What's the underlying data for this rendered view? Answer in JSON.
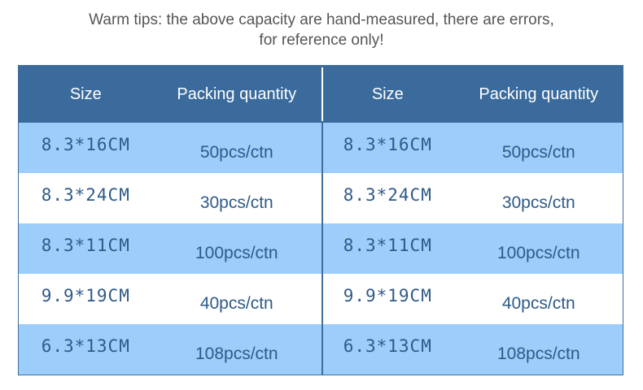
{
  "tips": {
    "line1": "Warm tips: the above capacity are hand-measured, there are errors,",
    "line2": "for reference only!"
  },
  "header": [
    "Size",
    "Packing quantity",
    "Size",
    "Packing quantity"
  ],
  "colors": {
    "header": "#3a6b9c",
    "row_light": "#9dcdfb",
    "row_white": "#ffffff",
    "text": "#2f5a88"
  },
  "rows": [
    {
      "size": "8.3*16CM",
      "qty": "50pcs/ctn",
      "size2": "8.3*16CM",
      "qty2": "50pcs/ctn"
    },
    {
      "size": "8.3*24CM",
      "qty": "30pcs/ctn",
      "size2": "8.3*24CM",
      "qty2": "30pcs/ctn"
    },
    {
      "size": "8.3*11CM",
      "qty": "100pcs/ctn",
      "size2": "8.3*11CM",
      "qty2": "100pcs/ctn"
    },
    {
      "size": "9.9*19CM",
      "qty": "40pcs/ctn",
      "size2": "9.9*19CM",
      "qty2": "40pcs/ctn"
    },
    {
      "size": "6.3*13CM",
      "qty": "108pcs/ctn",
      "size2": "6.3*13CM",
      "qty2": "108pcs/ctn"
    }
  ]
}
